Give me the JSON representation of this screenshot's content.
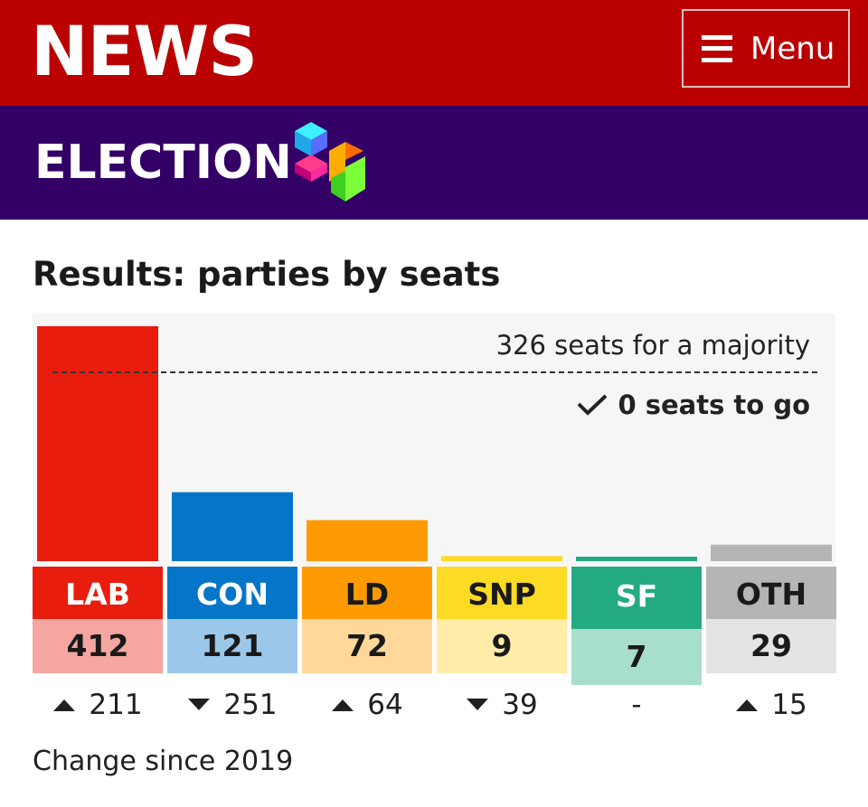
{
  "header": {
    "logo": "NEWS",
    "menu_label": "Menu",
    "colors": {
      "brand_red": "#bb0000",
      "election_purple": "#330066"
    }
  },
  "election_banner": {
    "title": "ELECTION"
  },
  "page": {
    "title": "Results: parties by seats"
  },
  "majority": {
    "label": "326 seats for a majority",
    "to_go": "0 seats to go",
    "seats_needed": 326
  },
  "chart_data": {
    "type": "bar",
    "title": "Results: parties by seats",
    "categories": [
      "LAB",
      "CON",
      "LD",
      "SNP",
      "SF",
      "OTH"
    ],
    "values": [
      412,
      121,
      72,
      9,
      7,
      29
    ],
    "reference_line": {
      "value": 326,
      "label": "326 seats for a majority"
    },
    "ylim": [
      0,
      412
    ]
  },
  "parties": [
    {
      "abbr": "LAB",
      "seats": "412",
      "change": "211",
      "direction": "up",
      "color": "#e91d0e",
      "light": "#f5a6a0"
    },
    {
      "abbr": "CON",
      "seats": "121",
      "change": "251",
      "direction": "down",
      "color": "#0575c9",
      "light": "#9bc8ea"
    },
    {
      "abbr": "LD",
      "seats": "72",
      "change": "64",
      "direction": "up",
      "color": "#ff9a02",
      "light": "#ffd89a"
    },
    {
      "abbr": "SNP",
      "seats": "9",
      "change": "39",
      "direction": "down",
      "color": "#fdda24",
      "light": "#feeca8"
    },
    {
      "abbr": "SF",
      "seats": "7",
      "change": "-",
      "direction": "none",
      "color": "#24aa83",
      "light": "#a7dfcc"
    },
    {
      "abbr": "OTH",
      "seats": "29",
      "change": "15",
      "direction": "up",
      "color": "#b5b5b5",
      "light": "#e4e4e4"
    }
  ],
  "footnote": "Change since 2019"
}
